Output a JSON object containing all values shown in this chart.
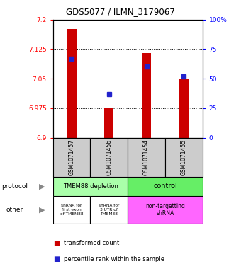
{
  "title": "GDS5077 / ILMN_3179067",
  "samples": [
    "GSM1071457",
    "GSM1071456",
    "GSM1071454",
    "GSM1071455"
  ],
  "bar_values": [
    7.175,
    6.975,
    7.115,
    7.05
  ],
  "bar_bottom": 6.9,
  "percentile_values": [
    67,
    37,
    60,
    52
  ],
  "ylim_left": [
    6.9,
    7.2
  ],
  "ylim_right": [
    0,
    100
  ],
  "yticks_left": [
    6.9,
    6.975,
    7.05,
    7.125,
    7.2
  ],
  "yticks_right": [
    0,
    25,
    50,
    75,
    100
  ],
  "ytick_labels_left": [
    "6.9",
    "6.975",
    "7.05",
    "7.125",
    "7.2"
  ],
  "ytick_labels_right": [
    "0",
    "25",
    "50",
    "75",
    "100%"
  ],
  "bar_color": "#cc0000",
  "dot_color": "#2222cc",
  "protocol_labels": [
    "TMEM88 depletion",
    "control"
  ],
  "protocol_colors": [
    "#aaffaa",
    "#66ee66"
  ],
  "other_labels_col1": "shRNA for\nfirst exon\nof TMEM88",
  "other_labels_col2": "shRNA for\n3'UTR of\nTMEM88",
  "other_labels_col3": "non-targetting\nshRNA",
  "other_color_white": "#ffffff",
  "other_color_magenta": "#ff66ff",
  "legend_red_label": "transformed count",
  "legend_blue_label": "percentile rank within the sample",
  "sample_bg_color": "#cccccc",
  "bar_width": 0.25,
  "title_fontsize": 8.5
}
